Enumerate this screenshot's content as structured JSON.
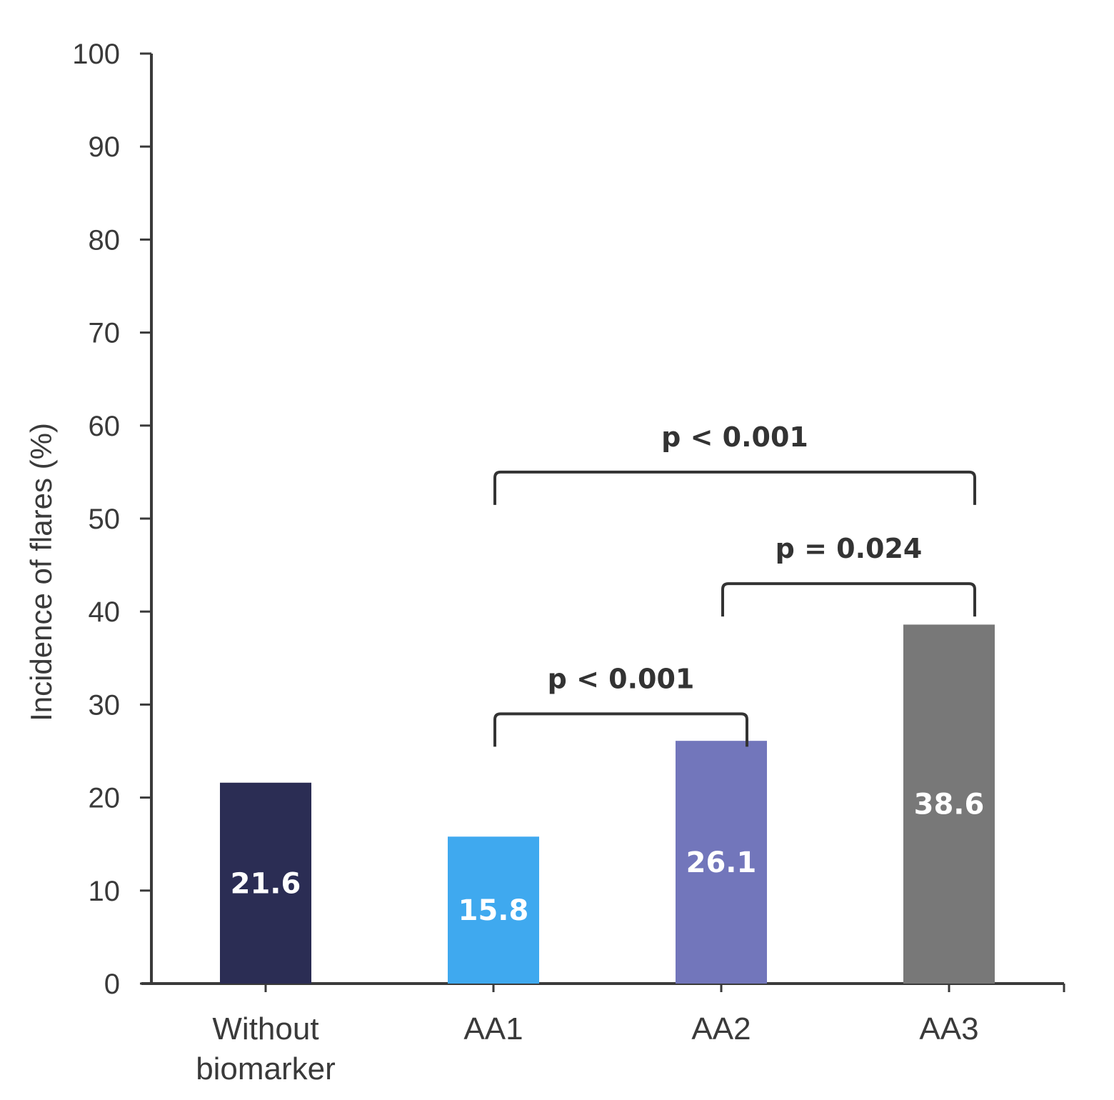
{
  "chart_data": {
    "type": "bar",
    "title": "",
    "xlabel": "",
    "ylabel": "Incidence of flares (%)",
    "ylim": [
      0,
      100
    ],
    "yticks": [
      0,
      10,
      20,
      30,
      40,
      50,
      60,
      70,
      80,
      90,
      100
    ],
    "grid": false,
    "categories": [
      [
        "Without",
        "biomarker"
      ],
      [
        "AA1"
      ],
      [
        "AA2"
      ],
      [
        "AA3"
      ]
    ],
    "values": [
      21.6,
      15.8,
      26.1,
      38.6
    ],
    "value_labels": [
      "21.6",
      "15.8",
      "26.1",
      "38.6"
    ],
    "colors": [
      "#2b2d54",
      "#3fa9ef",
      "#7276bb",
      "#787878"
    ],
    "comparisons": [
      {
        "from": 1,
        "to": 2,
        "label": "p < 0.001",
        "level": 29
      },
      {
        "from": 2,
        "to": 3,
        "label": "p = 0.024",
        "level": 43
      },
      {
        "from": 1,
        "to": 3,
        "label": "p < 0.001",
        "level": 55
      }
    ]
  }
}
